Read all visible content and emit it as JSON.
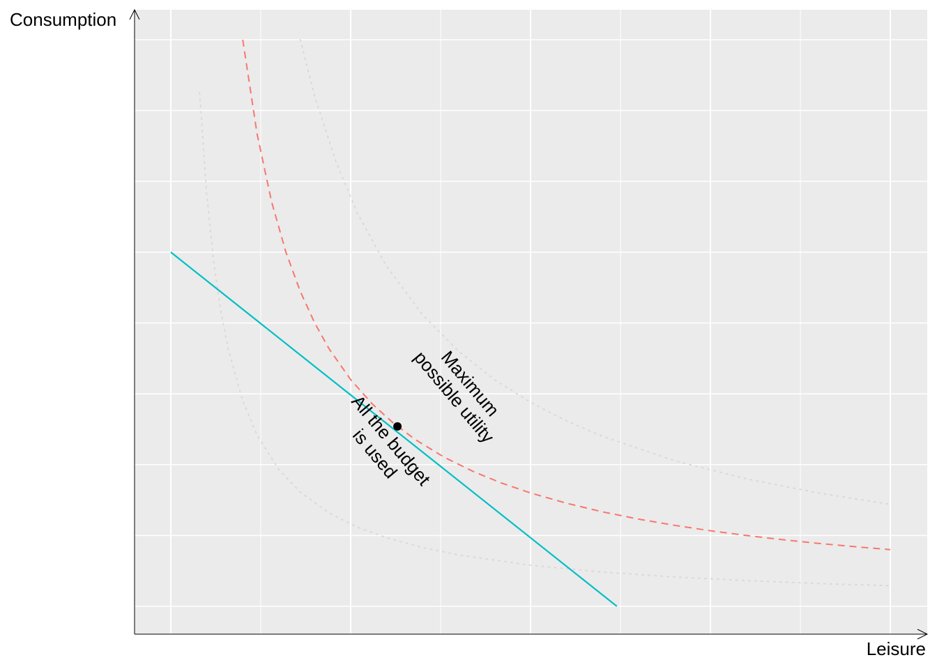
{
  "chart_data": {
    "type": "line",
    "title": "",
    "xlabel": "Leisure",
    "ylabel": "Consumption",
    "xlim": [
      0,
      1.1
    ],
    "ylim": [
      0,
      8.5
    ],
    "grid": true,
    "tick_labels": false,
    "background": "#EBEBEB",
    "budget_line": {
      "color": "#00BFC4",
      "x": [
        0,
        0.62
      ],
      "y": [
        5,
        0
      ]
    },
    "optimal_indifference_curve": {
      "color": "#F8766D",
      "style": "dashed",
      "x": [
        0.1,
        0.12,
        0.14,
        0.16,
        0.18,
        0.2,
        0.22,
        0.25,
        0.28,
        0.31,
        0.34,
        0.38,
        0.42,
        0.46,
        0.5,
        0.55,
        0.6,
        0.65,
        0.7,
        0.75,
        0.8,
        0.85,
        0.9,
        0.95,
        1.0
      ],
      "y": [
        8.0,
        6.667,
        5.714,
        5.0,
        4.444,
        4.0,
        3.636,
        3.2,
        2.857,
        2.581,
        2.353,
        2.105,
        1.905,
        1.739,
        1.6,
        1.455,
        1.333,
        1.231,
        1.143,
        1.067,
        1.0,
        0.941,
        0.889,
        0.842,
        0.8
      ]
    },
    "other_indifference_curves": [
      {
        "color": "#D9D9D9",
        "style": "dotted",
        "x": [
          0.04,
          0.05,
          0.06,
          0.07,
          0.08,
          0.1,
          0.12,
          0.15,
          0.18,
          0.22,
          0.26,
          0.3,
          0.35,
          0.4,
          0.5,
          0.6,
          0.7,
          0.8,
          0.9,
          1.0
        ],
        "y": [
          7.25,
          5.8,
          4.833,
          4.143,
          3.625,
          2.9,
          2.417,
          1.933,
          1.611,
          1.318,
          1.115,
          0.967,
          0.829,
          0.725,
          0.58,
          0.483,
          0.414,
          0.363,
          0.322,
          0.29
        ]
      },
      {
        "color": "#D9D9D9",
        "style": "dotted",
        "x": [
          0.18,
          0.2,
          0.23,
          0.26,
          0.3,
          0.35,
          0.4,
          0.45,
          0.5,
          0.55,
          0.6,
          0.7,
          0.8,
          0.9,
          1.0
        ],
        "y": [
          8.0,
          7.2,
          6.261,
          5.538,
          4.8,
          4.114,
          3.6,
          3.2,
          2.88,
          2.618,
          2.4,
          2.057,
          1.8,
          1.6,
          1.44
        ]
      }
    ],
    "optimum_point": {
      "x": 0.315,
      "y": 2.54,
      "color": "#000000"
    },
    "annotations": [
      {
        "text_lines": [
          "Maximum",
          "possible utility"
        ],
        "x": 0.405,
        "y": 3.05,
        "angle_deg": 50
      },
      {
        "text_lines": [
          "All the budget",
          "is used"
        ],
        "x": 0.295,
        "y": 2.25,
        "angle_deg": 50
      }
    ]
  }
}
